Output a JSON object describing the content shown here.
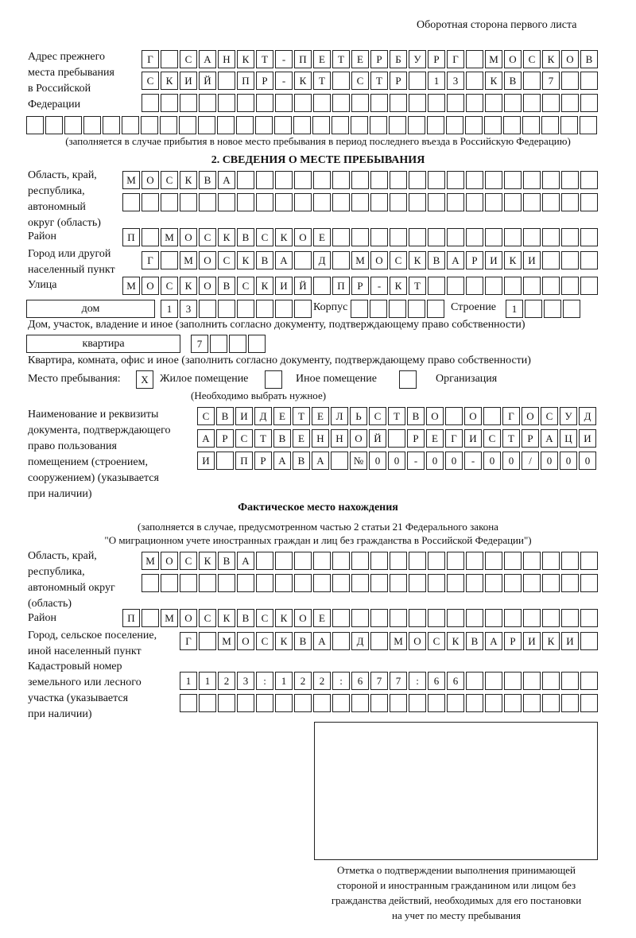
{
  "page_header": "Оборотная сторона первого листа",
  "previous_address": {
    "label": "Адрес прежнего\nместа пребывания\nв Российской\nФедерации",
    "rows": [
      "Г САНКТ-ПЕТЕРБУРГ МОСКОВ",
      "СКИЙ ПР-КТ СТР 13 КВ 7  ",
      "                        ",
      "                              "
    ],
    "note": "(заполняется в случае прибытия в новое место пребывания в период последнего въезда в Российскую Федерацию)"
  },
  "section2": {
    "title": "2. СВЕДЕНИЯ О МЕСТЕ ПРЕБЫВАНИЯ",
    "region_label": "Область, край,\nреспублика,\nавтономный\nокруг (область)",
    "region_rows": [
      "МОСКВА                   ",
      "                         "
    ],
    "district_label": "Район",
    "district_row": "П МОСКВСКОЕ              ",
    "city_label": "Город или другой\nнаселенный пункт",
    "city_row": "Г МОСКВА Д МОСКВАРИКИ   ",
    "street_label": "Улица",
    "street_row": "МОСКОВСКИЙ ПР-КТ         ",
    "house_type": "дом",
    "house_row": "13      ",
    "korpus_label": "Корпус",
    "korpus_row": "     ",
    "building_label": "Строение",
    "building_row": "1   ",
    "house_note": "Дом, участок, владение и иное (заполнить согласно документу, подтверждающему право собственности)",
    "apt_type": "квартира",
    "apt_row": "7   ",
    "apt_note": "Квартира, комната, офис и иное (заполнить согласно документу, подтверждающему право собственности)",
    "place_label": "Место пребывания:",
    "place_options": [
      {
        "mark": "X",
        "label": "Жилое помещение"
      },
      {
        "mark": "",
        "label": "Иное помещение"
      },
      {
        "mark": "",
        "label": "Организация"
      }
    ],
    "place_note": "(Необходимо выбрать нужное)",
    "doc_label": "Наименование и реквизиты\nдокумента, подтверждающего\nправо пользования\nпомещением (строением,\nсооружением) (указывается\nпри наличии)",
    "doc_rows": [
      "СВИДЕТЕЛЬСТВО О ГОСУД",
      "АРСТВЕННОЙ РЕГИСТРАЦИ",
      "И ПРАВА №00-00-00/000"
    ]
  },
  "actual": {
    "title": "Фактическое место нахождения",
    "note1": "(заполняется в случае, предусмотренном частью 2 статьи 21 Федерального закона",
    "note2": "\"О миграционном учете иностранных граждан и лиц без гражданства в Российской Федерации\")",
    "region_label": "Область, край,\nреспублика,\nавтономный округ\n(область)",
    "region_rows": [
      "МОСКВА                  ",
      "                        "
    ],
    "district_label": "Район",
    "district_row": "П МОСКВСКОЕ              ",
    "city_label": "Город, сельское поселение,\nиной населенный пункт",
    "city_row": "Г МОСКВА Д МОСКВАРИКИ ",
    "cadastre_label": "Кадастровый номер\nземельного или лесного\nучастка (указывается\nпри наличии)",
    "cadastre_rows": [
      "1123:122:677:66       ",
      "                      "
    ]
  },
  "stamp_caption": "Отметка о подтверждении выполнения принимающей\nстороной и иностранным гражданином или лицом без\nгражданства действий, необходимых для его постановки\nна учет по месту пребывания"
}
